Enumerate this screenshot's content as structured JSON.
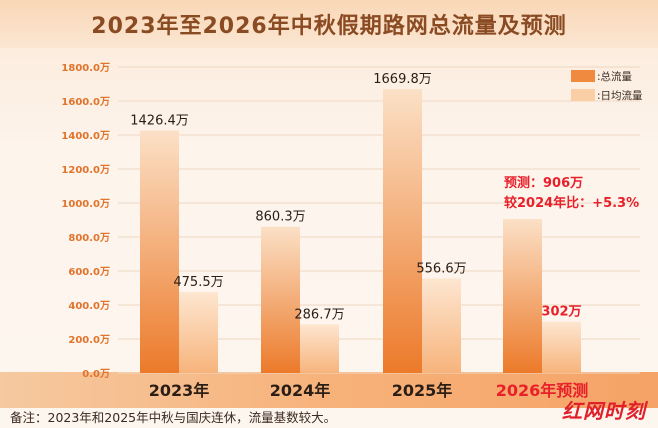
{
  "chart_data": {
    "type": "bar",
    "title": "2023年至2026年中秋假期路网总流量及预测",
    "categories": [
      "2023年",
      "2024年",
      "2025年",
      "2026年预测"
    ],
    "series": [
      {
        "name": "总流量",
        "values": [
          1426.4,
          860.3,
          1669.8,
          906
        ],
        "labels": [
          "1426.4万",
          "860.3万",
          "1669.8万",
          ""
        ]
      },
      {
        "name": "日均流量",
        "values": [
          475.5,
          286.7,
          556.6,
          302
        ],
        "labels": [
          "475.5万",
          "286.7万",
          "556.6万",
          "302万"
        ]
      }
    ],
    "yticks": [
      "0.0万",
      "200.0万",
      "400.0万",
      "600.0万",
      "800.0万",
      "1000.0万",
      "1200.0万",
      "1400.0万",
      "1600.0万",
      "1800.0万"
    ],
    "ylim": [
      0,
      1800
    ],
    "grid": true,
    "legend": "top-right",
    "annotations": [
      "预测：906万",
      "较2024年比：+5.3%"
    ],
    "footnote": "备注：2023年和2025年中秋与国庆连休，流量基数较大。",
    "colors": {
      "total": "#f08a3e",
      "daily": "#fbcfa6",
      "forecast_label": "#e8202a",
      "category_label": "#2a1e16",
      "axis_tick": "#e0742c"
    }
  },
  "watermark": "红网时刻"
}
